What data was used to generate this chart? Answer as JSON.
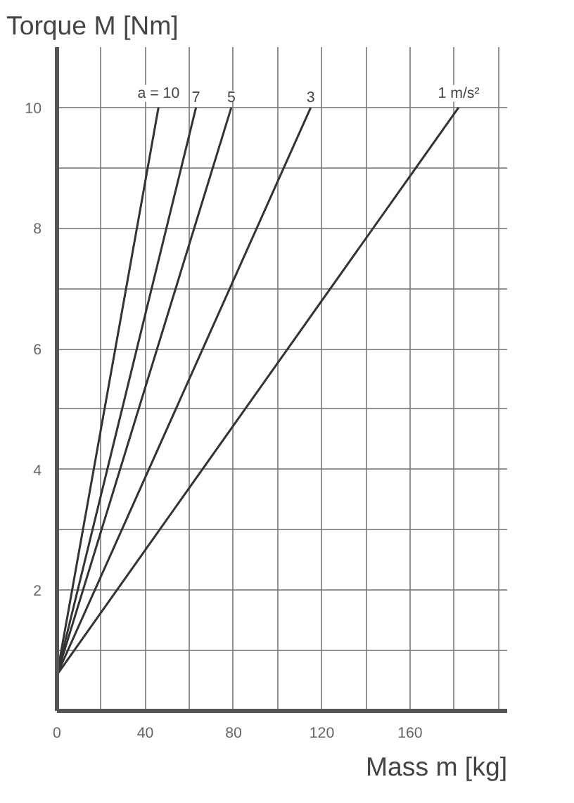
{
  "chart_data": {
    "type": "line",
    "xlabel": "Mass m [kg]",
    "ylabel": "Torque M [Nm]",
    "xlim": [
      0,
      204
    ],
    "ylim": [
      0,
      11
    ],
    "xticks": [
      0,
      {
        "value": 20,
        "label": null
      },
      40,
      {
        "value": 60,
        "label": null
      },
      80,
      {
        "value": 100,
        "label": null
      },
      120,
      {
        "value": 140,
        "label": null
      },
      160,
      {
        "value": 180,
        "label": null
      },
      {
        "value": 200,
        "label": null
      }
    ],
    "yticks": [
      {
        "value": 1,
        "label": null
      },
      2,
      {
        "value": 3,
        "label": null
      },
      4,
      {
        "value": 5,
        "label": null
      },
      6,
      {
        "value": 7,
        "label": null
      },
      8,
      {
        "value": 9,
        "label": null
      },
      10
    ],
    "grid": true,
    "marker": "none",
    "line_style": "solid",
    "series": [
      {
        "name": "a = 10",
        "color": "#333333",
        "x": [
          0,
          46
        ],
        "values": [
          0.6,
          10
        ]
      },
      {
        "name": "7",
        "color": "#333333",
        "x": [
          0,
          63
        ],
        "values": [
          0.6,
          10
        ]
      },
      {
        "name": "5",
        "color": "#333333",
        "x": [
          0,
          79
        ],
        "values": [
          0.6,
          10
        ]
      },
      {
        "name": "3",
        "color": "#333333",
        "x": [
          0,
          115
        ],
        "values": [
          0.6,
          10
        ]
      },
      {
        "name": "1 m/s²",
        "color": "#333333",
        "x": [
          0,
          182
        ],
        "values": [
          0.6,
          10
        ]
      }
    ]
  }
}
